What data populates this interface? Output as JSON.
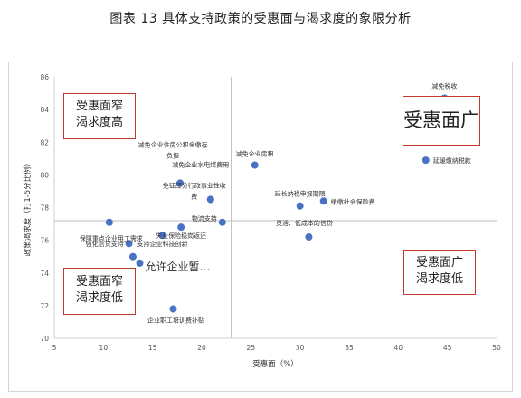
{
  "title": "图表 13  具体支持政策的受惠面与渴求度的象限分析",
  "quadrants": {
    "top_left": [
      "受惠面窄",
      "渴求度高"
    ],
    "top_right": [
      "受惠面广"
    ],
    "bottom_left": [
      "受惠面窄",
      "渴求度低"
    ],
    "bottom_right": [
      "受惠面广",
      "渴求度低"
    ]
  },
  "colors": {
    "point": "#4a72c4",
    "quadrant_border": "#c0392b",
    "divider": "#bfbfbf",
    "axis": "#d0d0d0"
  },
  "chart_data": {
    "type": "scatter",
    "title": "",
    "xlabel": "受惠面（%）",
    "ylabel": "政策渴求度（打1-5分比例）",
    "xlim": [
      5,
      50
    ],
    "ylim": [
      70,
      86
    ],
    "xticks": [
      5,
      10,
      15,
      20,
      25,
      30,
      35,
      40,
      45,
      50
    ],
    "yticks": [
      70,
      72,
      74,
      76,
      78,
      80,
      82,
      84,
      86
    ],
    "x_divider": 23,
    "y_divider": 77.2,
    "points": [
      {
        "label": "减免税收",
        "x": 44.7,
        "y": 84.7
      },
      {
        "label": "延缓缴纳税款",
        "x": 42.8,
        "y": 80.9
      },
      {
        "label": "减免企业房租",
        "x": 25.4,
        "y": 80.6
      },
      {
        "label": "减免企业住房公积金缴存负担",
        "x": 17.8,
        "y": 79.5
      },
      {
        "label": "减免企业水电煤费用",
        "x": 20.9,
        "y": 78.5
      },
      {
        "label": "免征部分行政事业性收费",
        "x": 20.9,
        "y": 78.5
      },
      {
        "label": "延长纳税申报期限",
        "x": 30.0,
        "y": 78.1
      },
      {
        "label": "缓缴社会保险费",
        "x": 32.4,
        "y": 78.4
      },
      {
        "label": "物流支持",
        "x": 22.1,
        "y": 77.1
      },
      {
        "label": "灵活、低成本的信贷",
        "x": 30.9,
        "y": 76.2
      },
      {
        "label": "失业保险稳岗返还",
        "x": 17.9,
        "y": 76.8
      },
      {
        "label": "保障重点企业用工需求",
        "x": 10.6,
        "y": 77.1
      },
      {
        "label": "支持企业科技创新",
        "x": 16.0,
        "y": 76.3
      },
      {
        "label": "强化信贷支持",
        "x": 12.6,
        "y": 75.8
      },
      {
        "label": "",
        "x": 13.0,
        "y": 75.0
      },
      {
        "label": "允许企业暂…",
        "x": 13.7,
        "y": 74.6
      },
      {
        "label": "企业职工培训费补贴",
        "x": 17.1,
        "y": 71.8
      }
    ]
  }
}
